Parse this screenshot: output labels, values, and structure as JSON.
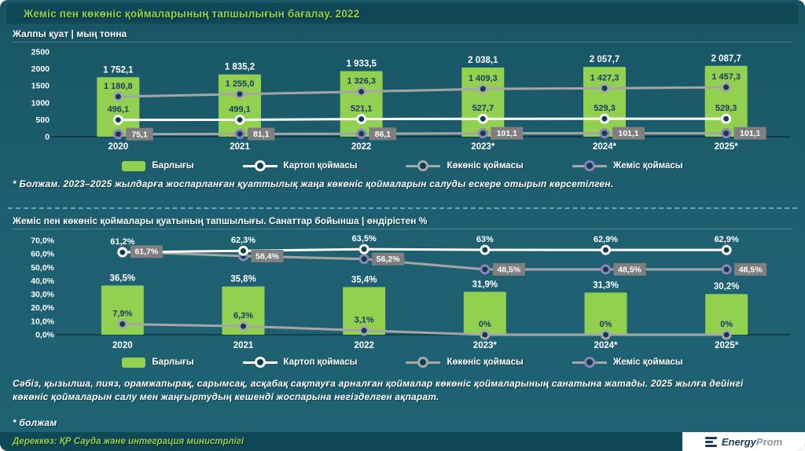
{
  "title": "Жеміс пен көкөніс қоймаларының тапшылығын бағалау. 2022",
  "colors": {
    "background": "#1d5f70",
    "header_bar": "#0e4756",
    "accent_green": "#92d050",
    "dark_label": "#1f3864",
    "badge_bg": "#7f7f7f",
    "marker_fill": "#113d4d",
    "line_white": "#ffffff",
    "line_gray": "#a6a6a6",
    "marker_purple": "#8d83bb",
    "logo_navy": "#1c3b57",
    "logo_gray": "#8f969c"
  },
  "chart_data": [
    {
      "type": "bar-line-combo",
      "title": "Жалпы қуат | мың тонна",
      "categories": [
        "2020",
        "2021",
        "2022",
        "2023*",
        "2024*",
        "2025*"
      ],
      "ylim": [
        0,
        2500
      ],
      "ytick_values": [
        2500,
        2000,
        1500,
        1000,
        500,
        0
      ],
      "ytick_labels": [
        "2500",
        "2000",
        "1500",
        "1000",
        "500",
        "0"
      ],
      "grid": false,
      "legend_position": "bottom",
      "bars": {
        "name": "Барлығы",
        "color": "#92d050",
        "values": [
          1752.1,
          1835.2,
          1933.5,
          2038.1,
          2057.7,
          2087.7
        ],
        "labels": [
          "1 752,1",
          "1 835,2",
          "1 933,5",
          "2 038,1",
          "2 057,7",
          "2 087,7"
        ]
      },
      "lines": [
        {
          "name": "Картоп қоймасы",
          "color": "#ffffff",
          "marker": "#ffffff",
          "label_style": "dark",
          "values": [
            496.1,
            499.1,
            521.1,
            527.7,
            529.3,
            529.3
          ],
          "labels": [
            "496,1",
            "499,1",
            "521,1",
            "527,7",
            "529,3",
            "529,3"
          ]
        },
        {
          "name": "Көкөніс қоймасы",
          "color": "#a6a6a6",
          "marker": "#a6a6a6",
          "label_style": "dark",
          "values": [
            1180.8,
            1255.0,
            1326.3,
            1409.3,
            1427.3,
            1457.3
          ],
          "labels": [
            "1 180,8",
            "1 255,0",
            "1 326,3",
            "1 409,3",
            "1 427,3",
            "1 457,3"
          ]
        },
        {
          "name": "Жеміс қоймасы",
          "color": "#a6a6a6",
          "marker": "#8d83bb",
          "label_style": "badge",
          "values": [
            75.1,
            81.1,
            86.1,
            101.1,
            101.1,
            101.1
          ],
          "labels": [
            "75,1",
            "81,1",
            "86,1",
            "101,1",
            "101,1",
            "101,1"
          ]
        }
      ]
    },
    {
      "type": "bar-line-combo",
      "title": "Жеміс пен көкөніс қоймалары қуатының тапшылығы. Санаттар бойынша | өндірістен %",
      "categories": [
        "2020",
        "2021",
        "2022",
        "2023*",
        "2024*",
        "2025*"
      ],
      "ylim": [
        0,
        70
      ],
      "ytick_values": [
        70,
        60,
        50,
        40,
        30,
        20,
        10,
        0
      ],
      "ytick_labels": [
        "70,0%",
        "60,0%",
        "50,0%",
        "40,0%",
        "30,0%",
        "20,0%",
        "10,0%",
        "0,0%"
      ],
      "grid": false,
      "legend_position": "bottom",
      "bars": {
        "name": "Барлығы",
        "color": "#92d050",
        "values": [
          36.5,
          35.8,
          35.4,
          31.9,
          31.3,
          30.2
        ],
        "labels": [
          "36,5%",
          "35,8%",
          "35,4%",
          "31,9%",
          "31,3%",
          "30,2%"
        ]
      },
      "lines": [
        {
          "name": "Картоп қоймасы",
          "color": "#ffffff",
          "marker": "#ffffff",
          "label_style": "white",
          "values": [
            61.2,
            62.3,
            63.5,
            63,
            62.9,
            62.9
          ],
          "labels": [
            "61,2%",
            "62,3%",
            "63,5%",
            "63%",
            "62,9%",
            "62,9%"
          ]
        },
        {
          "name": "Көкөніс қоймасы",
          "color": "#a6a6a6",
          "marker": "#a6a6a6",
          "label_style": "dark",
          "values": [
            7.9,
            6.3,
            3.1,
            0,
            0,
            0
          ],
          "labels": [
            "7,9%",
            "6,3%",
            "3,1%",
            "0%",
            "0%",
            "0%"
          ]
        },
        {
          "name": "Жеміс қоймасы",
          "color": "#a6a6a6",
          "marker": "#8d83bb",
          "label_style": "badge",
          "values": [
            61.7,
            58.4,
            56.2,
            48.5,
            48.5,
            48.5
          ],
          "labels": [
            "61,7%",
            "58,4%",
            "56,2%",
            "48,5%",
            "48,5%",
            "48,5%"
          ]
        }
      ]
    }
  ],
  "footnotes": {
    "forecast": "* Болжам. 2023–2025 жылдарға жоспарланған қуаттылық жаңа көкөніс қоймаларын салуды ескере отырып көрсетілген.",
    "categories_note": "Сәбіз, қызылша, пияз, орамжапырақ, сарымсақ, асқабақ сақтауға арналған қоймалар көкөніс қоймаларының санатына жатады. 2025 жылға дейінгі көкөніс қоймаларын салу мен жаңғыртудың кешенді жоспарына негізделген ақпарат.",
    "forecast_short": "* болжам"
  },
  "footer": {
    "source": "Дереккөз: ҚР Сауда және интеграция министрлігі",
    "brand_1": "Energy",
    "brand_2": "Prom"
  }
}
